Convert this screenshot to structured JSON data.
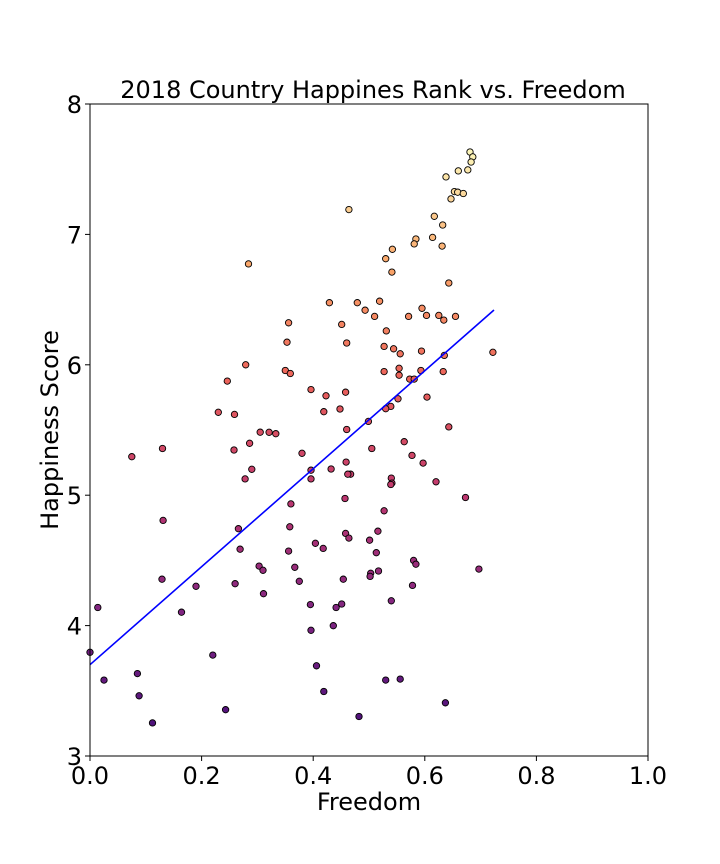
{
  "chart_data": {
    "type": "scatter",
    "title": "2018 Country Happines Rank vs. Freedom",
    "xlabel": "Freedom",
    "ylabel": "Happiness Score",
    "xlim": [
      0.0,
      1.0
    ],
    "ylim": [
      3,
      8
    ],
    "xticks": [
      "0.0",
      "0.2",
      "0.4",
      "0.6",
      "0.8",
      "1.0"
    ],
    "yticks": [
      "3",
      "4",
      "5",
      "6",
      "7",
      "8"
    ],
    "xtick_values": [
      0.0,
      0.2,
      0.4,
      0.6,
      0.8,
      1.0
    ],
    "ytick_values": [
      3,
      4,
      5,
      6,
      7,
      8
    ],
    "grid": false,
    "colormap": "magma (by happiness score)",
    "marker_edge_color": "#000000",
    "points": [
      [
        0.681,
        7.632
      ],
      [
        0.686,
        7.594
      ],
      [
        0.683,
        7.555
      ],
      [
        0.677,
        7.495
      ],
      [
        0.66,
        7.487
      ],
      [
        0.638,
        7.441
      ],
      [
        0.653,
        7.328
      ],
      [
        0.659,
        7.324
      ],
      [
        0.669,
        7.314
      ],
      [
        0.647,
        7.272
      ],
      [
        0.464,
        7.19
      ],
      [
        0.617,
        7.139
      ],
      [
        0.632,
        7.072
      ],
      [
        0.614,
        6.977
      ],
      [
        0.584,
        6.965
      ],
      [
        0.581,
        6.927
      ],
      [
        0.631,
        6.91
      ],
      [
        0.542,
        6.886
      ],
      [
        0.53,
        6.814
      ],
      [
        0.284,
        6.774
      ],
      [
        0.541,
        6.711
      ],
      [
        0.643,
        6.627
      ],
      [
        0.519,
        6.488
      ],
      [
        0.479,
        6.476
      ],
      [
        0.429,
        6.476
      ],
      [
        0.595,
        6.433
      ],
      [
        0.493,
        6.419
      ],
      [
        0.603,
        6.379
      ],
      [
        0.655,
        6.371
      ],
      [
        0.51,
        6.371
      ],
      [
        0.571,
        6.371
      ],
      [
        0.625,
        6.379
      ],
      [
        0.634,
        6.343
      ],
      [
        0.451,
        6.31
      ],
      [
        0.356,
        6.322
      ],
      [
        0.531,
        6.26
      ],
      [
        0.353,
        6.173
      ],
      [
        0.46,
        6.167
      ],
      [
        0.527,
        6.141
      ],
      [
        0.544,
        6.123
      ],
      [
        0.722,
        6.096
      ],
      [
        0.594,
        6.105
      ],
      [
        0.556,
        6.084
      ],
      [
        0.635,
        6.072
      ],
      [
        0.279,
        6.0
      ],
      [
        0.554,
        5.973
      ],
      [
        0.593,
        5.956
      ],
      [
        0.35,
        5.956
      ],
      [
        0.359,
        5.933
      ],
      [
        0.527,
        5.948
      ],
      [
        0.633,
        5.948
      ],
      [
        0.554,
        5.92
      ],
      [
        0.573,
        5.89
      ],
      [
        0.581,
        5.89
      ],
      [
        0.246,
        5.875
      ],
      [
        0.396,
        5.81
      ],
      [
        0.458,
        5.79
      ],
      [
        0.423,
        5.762
      ],
      [
        0.604,
        5.752
      ],
      [
        0.552,
        5.739
      ],
      [
        0.539,
        5.681
      ],
      [
        0.53,
        5.663
      ],
      [
        0.448,
        5.661
      ],
      [
        0.419,
        5.64
      ],
      [
        0.23,
        5.636
      ],
      [
        0.259,
        5.62
      ],
      [
        0.499,
        5.566
      ],
      [
        0.643,
        5.524
      ],
      [
        0.46,
        5.504
      ],
      [
        0.305,
        5.483
      ],
      [
        0.321,
        5.482
      ],
      [
        0.333,
        5.472
      ],
      [
        0.563,
        5.41
      ],
      [
        0.286,
        5.398
      ],
      [
        0.505,
        5.358
      ],
      [
        0.13,
        5.358
      ],
      [
        0.258,
        5.347
      ],
      [
        0.38,
        5.321
      ],
      [
        0.577,
        5.305
      ],
      [
        0.075,
        5.295
      ],
      [
        0.459,
        5.254
      ],
      [
        0.597,
        5.246
      ],
      [
        0.432,
        5.201
      ],
      [
        0.29,
        5.199
      ],
      [
        0.396,
        5.192
      ],
      [
        0.467,
        5.161
      ],
      [
        0.462,
        5.161
      ],
      [
        0.54,
        5.131
      ],
      [
        0.396,
        5.125
      ],
      [
        0.278,
        5.125
      ],
      [
        0.62,
        5.103
      ],
      [
        0.541,
        5.093
      ],
      [
        0.539,
        5.082
      ],
      [
        0.673,
        4.982
      ],
      [
        0.457,
        4.975
      ],
      [
        0.36,
        4.933
      ],
      [
        0.527,
        4.88
      ],
      [
        0.131,
        4.807
      ],
      [
        0.358,
        4.758
      ],
      [
        0.266,
        4.743
      ],
      [
        0.516,
        4.724
      ],
      [
        0.458,
        4.707
      ],
      [
        0.464,
        4.671
      ],
      [
        0.501,
        4.655
      ],
      [
        0.404,
        4.631
      ],
      [
        0.418,
        4.592
      ],
      [
        0.269,
        4.586
      ],
      [
        0.356,
        4.571
      ],
      [
        0.513,
        4.559
      ],
      [
        0.58,
        4.5
      ],
      [
        0.584,
        4.471
      ],
      [
        0.303,
        4.456
      ],
      [
        0.367,
        4.447
      ],
      [
        0.697,
        4.433
      ],
      [
        0.31,
        4.424
      ],
      [
        0.517,
        4.419
      ],
      [
        0.503,
        4.401
      ],
      [
        0.502,
        4.377
      ],
      [
        0.454,
        4.356
      ],
      [
        0.375,
        4.34
      ],
      [
        0.129,
        4.356
      ],
      [
        0.19,
        4.301
      ],
      [
        0.26,
        4.321
      ],
      [
        0.578,
        4.308
      ],
      [
        0.311,
        4.245
      ],
      [
        0.54,
        4.19
      ],
      [
        0.451,
        4.166
      ],
      [
        0.395,
        4.161
      ],
      [
        0.441,
        4.139
      ],
      [
        0.014,
        4.139
      ],
      [
        0.164,
        4.103
      ],
      [
        0.436,
        3.999
      ],
      [
        0.396,
        3.964
      ],
      [
        0.22,
        3.774
      ],
      [
        0.0,
        3.795
      ],
      [
        0.406,
        3.692
      ],
      [
        0.085,
        3.632
      ],
      [
        0.025,
        3.582
      ],
      [
        0.53,
        3.582
      ],
      [
        0.556,
        3.59
      ],
      [
        0.419,
        3.495
      ],
      [
        0.088,
        3.462
      ],
      [
        0.243,
        3.355
      ],
      [
        0.637,
        3.408
      ],
      [
        0.482,
        3.303
      ],
      [
        0.112,
        3.254
      ]
    ],
    "regression_line": {
      "x": [
        0.0,
        0.724
      ],
      "y": [
        3.7,
        6.42
      ],
      "color": "#0000ff"
    }
  }
}
